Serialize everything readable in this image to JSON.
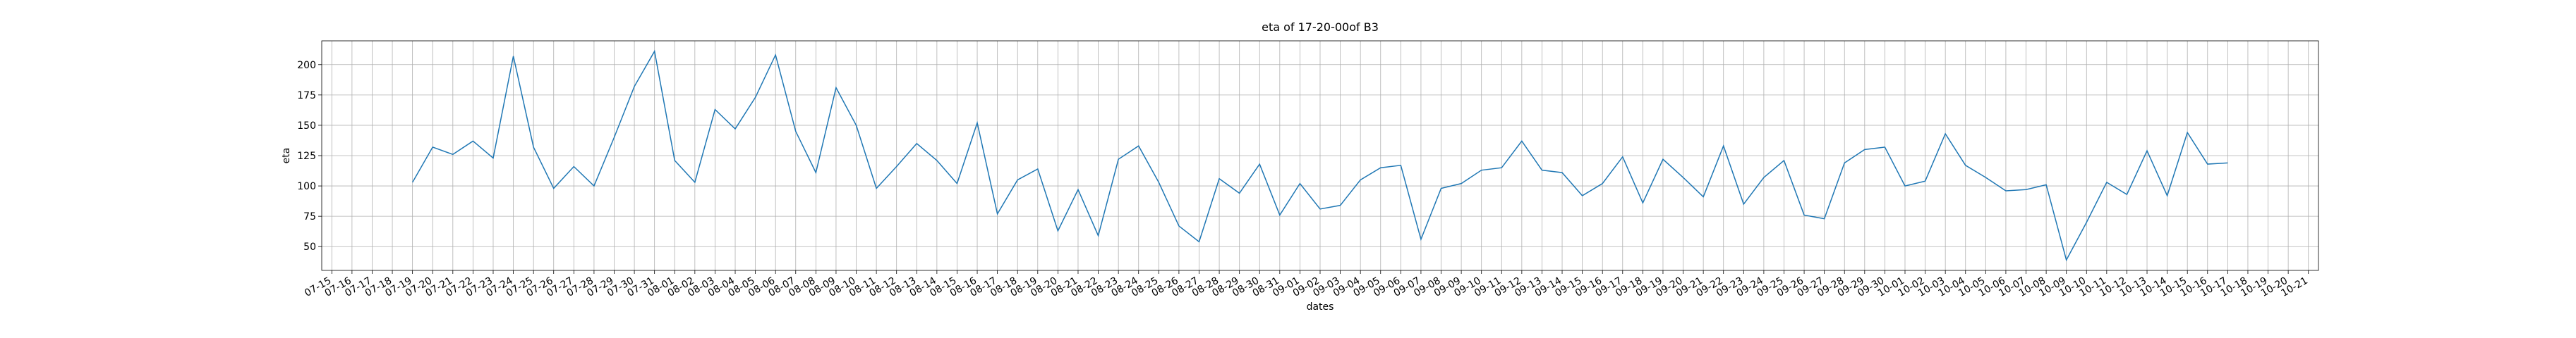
{
  "chart_data": {
    "type": "line",
    "title": "eta of 17-20-00of B3",
    "x_label": "dates",
    "y_label": "eta",
    "color": "#1f77b4",
    "grid": true,
    "x": [
      "07-19",
      "07-20",
      "07-21",
      "07-22",
      "07-23",
      "07-24",
      "07-25",
      "07-26",
      "07-27",
      "07-28",
      "07-29",
      "07-30",
      "07-31",
      "08-01",
      "08-02",
      "08-03",
      "08-04",
      "08-05",
      "08-06",
      "08-07",
      "08-08",
      "08-09",
      "08-10",
      "08-11",
      "08-12",
      "08-13",
      "08-14",
      "08-15",
      "08-16",
      "08-17",
      "08-18",
      "08-19",
      "08-20",
      "08-21",
      "08-22",
      "08-23",
      "08-24",
      "08-25",
      "08-26",
      "08-27",
      "08-28",
      "08-29",
      "08-30",
      "08-31",
      "09-01",
      "09-02",
      "09-03",
      "09-04",
      "09-05",
      "09-06",
      "09-07",
      "09-08",
      "09-09",
      "09-10",
      "09-11",
      "09-12",
      "09-13",
      "09-14",
      "09-15",
      "09-16",
      "09-17",
      "09-18",
      "09-19",
      "09-20",
      "09-21",
      "09-22",
      "09-23",
      "09-24",
      "09-25",
      "09-26",
      "09-27",
      "09-28",
      "09-29",
      "09-30",
      "10-01",
      "10-02",
      "10-03",
      "10-04",
      "10-05",
      "10-06",
      "10-07",
      "10-08",
      "10-09",
      "10-10",
      "10-11",
      "10-12",
      "10-13",
      "10-14",
      "10-15",
      "10-16",
      "10-17"
    ],
    "values": [
      103,
      132,
      126,
      137,
      123,
      207,
      132,
      98,
      116,
      100,
      140,
      182,
      211,
      121,
      103,
      163,
      147,
      173,
      208,
      145,
      111,
      181,
      150,
      98,
      116,
      135,
      121,
      102,
      152,
      77,
      105,
      114,
      63,
      97,
      59,
      122,
      133,
      103,
      67,
      54,
      106,
      94,
      118,
      76,
      102,
      81,
      84,
      105,
      115,
      117,
      56,
      98,
      102,
      113,
      115,
      137,
      113,
      111,
      92,
      102,
      124,
      86,
      122,
      107,
      91,
      133,
      85,
      107,
      121,
      76,
      73,
      119,
      130,
      132,
      100,
      104,
      143,
      117,
      107,
      96,
      97,
      101,
      39,
      70,
      103,
      93,
      129,
      92,
      144,
      118,
      119
    ],
    "xlim": [
      "07-14 12:00",
      "10-21 12:00"
    ],
    "xticks": [
      "07-15",
      "07-16",
      "07-17",
      "07-18",
      "07-19",
      "07-20",
      "07-21",
      "07-22",
      "07-23",
      "07-24",
      "07-25",
      "07-26",
      "07-27",
      "07-28",
      "07-29",
      "07-30",
      "07-31",
      "08-01",
      "08-02",
      "08-03",
      "08-04",
      "08-05",
      "08-06",
      "08-07",
      "08-08",
      "08-09",
      "08-10",
      "08-11",
      "08-12",
      "08-13",
      "08-14",
      "08-15",
      "08-16",
      "08-17",
      "08-18",
      "08-19",
      "08-20",
      "08-21",
      "08-22",
      "08-23",
      "08-24",
      "08-25",
      "08-26",
      "08-27",
      "08-28",
      "08-29",
      "08-30",
      "08-31",
      "09-01",
      "09-02",
      "09-03",
      "09-04",
      "09-05",
      "09-06",
      "09-07",
      "09-08",
      "09-09",
      "09-10",
      "09-11",
      "09-12",
      "09-13",
      "09-14",
      "09-15",
      "09-16",
      "09-17",
      "09-18",
      "09-19",
      "09-20",
      "09-21",
      "09-22",
      "09-23",
      "09-24",
      "09-25",
      "09-26",
      "09-27",
      "09-28",
      "09-29",
      "09-30",
      "10-01",
      "10-02",
      "10-03",
      "10-04",
      "10-05",
      "10-06",
      "10-07",
      "10-08",
      "10-09",
      "10-10",
      "10-11",
      "10-12",
      "10-13",
      "10-14",
      "10-15",
      "10-16",
      "10-17",
      "10-18",
      "10-19",
      "10-20",
      "10-21"
    ],
    "ylim": [
      30.4,
      219.6
    ],
    "yticks": [
      50,
      75,
      100,
      125,
      150,
      175,
      200
    ]
  }
}
